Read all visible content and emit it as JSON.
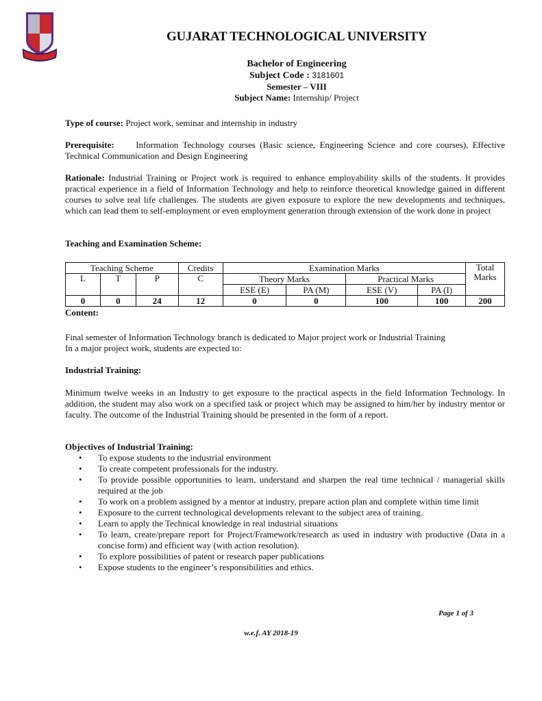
{
  "header": {
    "logo": "Gujarat Technological University crest",
    "university": "GUJARAT TECHNOLOGICAL UNIVERSITY",
    "degree": "Bachelor of Engineering",
    "subject_code_label": "Subject Code :",
    "subject_code": "3181601",
    "semester": "Semester – VIII",
    "subject_name_label": "Subject Name:",
    "subject_name": "Internship/ Project"
  },
  "type": {
    "label": "Type of course:",
    "text": "Project work, seminar and internship in industry"
  },
  "prereq": {
    "label": "Prerequisite:",
    "text": "Information Technology courses (Basic science, Engineering Science and core courses), Effective Technical Communication and Design Engineering"
  },
  "rationale": {
    "label": "Rationale:",
    "text": "Industrial Training or Project work is required to enhance employability skills of the students. It provides practical experience in a field of Information Technology and help to reinforce theoretical knowledge gained in different courses to solve real life challenges. The students are given exposure to explore the new developments and techniques, which can lead them to self-employment or even employment generation through extension of the work done in project"
  },
  "scheme_heading": "Teaching and Examination Scheme:",
  "table": {
    "teaching": "Teaching Scheme",
    "credits": "Credits",
    "exam": "Examination Marks",
    "total": "Total",
    "marks": "Marks",
    "L": "L",
    "T": "T",
    "P": "P",
    "C": "C",
    "theory": "Theory Marks",
    "practical": "Practical Marks",
    "ese_e": "ESE (E)",
    "pa_m": "PA (M)",
    "ese_v": "ESE (V)",
    "pa_i": "PA (I)",
    "values": [
      "0",
      "0",
      "24",
      "12",
      "0",
      "0",
      "100",
      "100",
      "200"
    ]
  },
  "content_heading": "Content:",
  "content": [
    "Final semester of Information Technology branch is dedicated to Major project work or Industrial Training",
    "In a major project work, students are expected to:"
  ],
  "industrial_heading": "Industrial Training:",
  "industrial_text": "Minimum twelve weeks in an Industry to get exposure to the practical aspects in the field Information Technology. In addition, the student may also work on a specified task or project which may be assigned to him/her by industry mentor or faculty. The outcome of the Industrial Training should be presented in the form of a report.",
  "objectives_heading": "Objectives of Industrial Training:",
  "objectives": [
    "To expose students to the industrial environment",
    "To create competent professionals for the industry.",
    "To provide possible opportunities to learn, understand and sharpen the real time technical / managerial skills required at the job",
    "To work on a problem assigned by a mentor at industry, prepare action plan and complete within time limit",
    "Exposure to the current technological developments relevant to the subject area of training.",
    "Learn to apply the Technical knowledge in real industrial situations",
    "To learn, create/prepare report for Project/Framework/research as used in industry with productive (Data in a concise form) and efficient way (with action resolution).",
    "To explore possibilities of patent or research paper publications",
    "Expose students to the engineer’s responsibilities and ethics."
  ],
  "footer": {
    "page": "Page 1 of 3",
    "wef": "w.e.f. AY 2018-19"
  }
}
